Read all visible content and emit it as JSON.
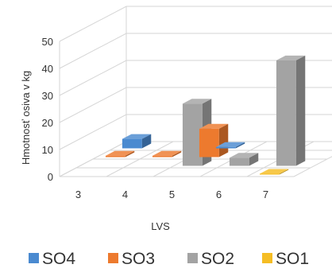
{
  "chart_data": {
    "type": "bar",
    "subtype": "3d-column",
    "title": "",
    "xlabel": "LVS",
    "ylabel": "Hmotnosť osiva v kg",
    "categories": [
      "3",
      "4",
      "5",
      "6",
      "7"
    ],
    "ylim": [
      0,
      50
    ],
    "yticks": [
      0,
      10,
      20,
      30,
      40,
      50
    ],
    "grid": true,
    "legend_position": "bottom",
    "series": [
      {
        "name": "SO4",
        "color": "#4a8ad0",
        "values": [
          3.5,
          0,
          0.5,
          0,
          0
        ]
      },
      {
        "name": "SO3",
        "color": "#ed7a2e",
        "values": [
          0.5,
          0.5,
          10.5,
          0,
          0
        ]
      },
      {
        "name": "SO2",
        "color": "#a3a3a3",
        "values": [
          0,
          0,
          23,
          3,
          39
        ]
      },
      {
        "name": "SO1",
        "color": "#f5bd24",
        "values": [
          0,
          0,
          0,
          0,
          0.3
        ]
      }
    ]
  }
}
